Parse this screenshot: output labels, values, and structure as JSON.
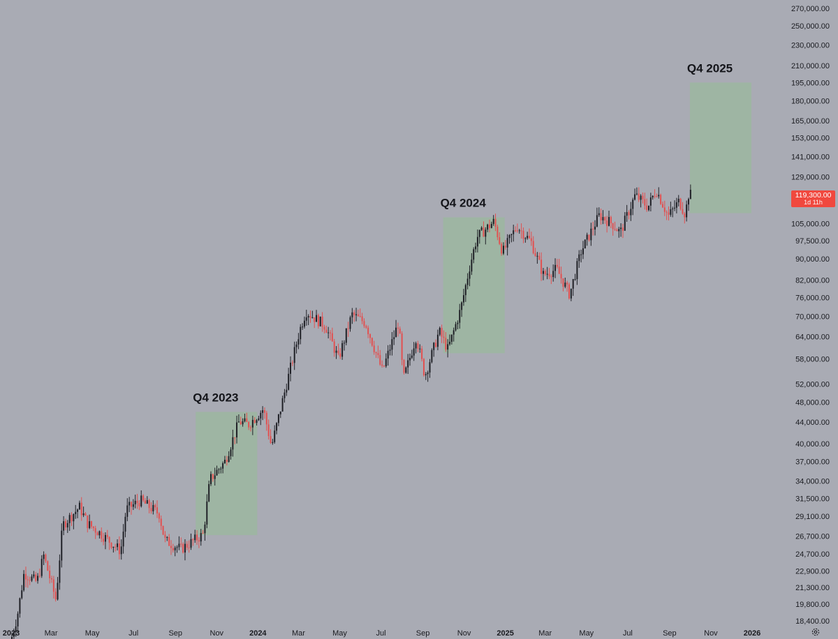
{
  "chart_data": {
    "type": "candlestick",
    "title": "",
    "xlabel": "",
    "ylabel": "",
    "scale": "log",
    "grid": false,
    "y_ticks": [
      "270,000.00",
      "250,000.00",
      "230,000.00",
      "210,000.00",
      "195,000.00",
      "180,000.00",
      "165,000.00",
      "153,000.00",
      "141,000.00",
      "129,000.00",
      "105,000.00",
      "97,500.00",
      "90,000.00",
      "82,000.00",
      "76,000.00",
      "70,000.00",
      "64,000.00",
      "58,000.00",
      "52,000.00",
      "48,000.00",
      "44,000.00",
      "40,000.00",
      "37,000.00",
      "34,000.00",
      "31,500.00",
      "29,100.00",
      "26,700.00",
      "24,700.00",
      "22,900.00",
      "21,300.00",
      "19,800.00",
      "18,400.00"
    ],
    "x_ticks": [
      {
        "label": "2023",
        "date": "2023-01-01",
        "bold": true
      },
      {
        "label": "Mar",
        "date": "2023-03-01",
        "bold": false
      },
      {
        "label": "May",
        "date": "2023-05-01",
        "bold": false
      },
      {
        "label": "Jul",
        "date": "2023-07-01",
        "bold": false
      },
      {
        "label": "Sep",
        "date": "2023-09-01",
        "bold": false
      },
      {
        "label": "Nov",
        "date": "2023-11-01",
        "bold": false
      },
      {
        "label": "2024",
        "date": "2024-01-01",
        "bold": true
      },
      {
        "label": "Mar",
        "date": "2024-03-01",
        "bold": false
      },
      {
        "label": "May",
        "date": "2024-05-01",
        "bold": false
      },
      {
        "label": "Jul",
        "date": "2024-07-01",
        "bold": false
      },
      {
        "label": "Sep",
        "date": "2024-09-01",
        "bold": false
      },
      {
        "label": "Nov",
        "date": "2024-11-01",
        "bold": false
      },
      {
        "label": "2025",
        "date": "2025-01-01",
        "bold": true
      },
      {
        "label": "Mar",
        "date": "2025-03-01",
        "bold": false
      },
      {
        "label": "May",
        "date": "2025-05-01",
        "bold": false
      },
      {
        "label": "Jul",
        "date": "2025-07-01",
        "bold": false
      },
      {
        "label": "Sep",
        "date": "2025-09-01",
        "bold": false
      },
      {
        "label": "Nov",
        "date": "2025-11-01",
        "bold": false
      },
      {
        "label": "2026",
        "date": "2026-01-01",
        "bold": true
      }
    ],
    "price_path": [
      [
        "2023-01-01",
        16600
      ],
      [
        "2023-01-12",
        18800
      ],
      [
        "2023-01-22",
        22700
      ],
      [
        "2023-02-10",
        21800
      ],
      [
        "2023-02-20",
        24500
      ],
      [
        "2023-03-10",
        20200
      ],
      [
        "2023-03-20",
        28000
      ],
      [
        "2023-04-14",
        30300
      ],
      [
        "2023-04-26",
        28200
      ],
      [
        "2023-05-15",
        27000
      ],
      [
        "2023-06-14",
        25000
      ],
      [
        "2023-06-22",
        30000
      ],
      [
        "2023-07-13",
        31200
      ],
      [
        "2023-08-10",
        29400
      ],
      [
        "2023-08-18",
        26200
      ],
      [
        "2023-09-11",
        25200
      ],
      [
        "2023-10-14",
        26900
      ],
      [
        "2023-10-24",
        34200
      ],
      [
        "2023-11-15",
        37000
      ],
      [
        "2023-12-06",
        44100
      ],
      [
        "2023-12-20",
        43500
      ],
      [
        "2024-01-11",
        46600
      ],
      [
        "2024-01-23",
        39500
      ],
      [
        "2024-02-14",
        51800
      ],
      [
        "2024-03-05",
        66000
      ],
      [
        "2024-03-14",
        71500
      ],
      [
        "2024-04-12",
        67000
      ],
      [
        "2024-05-01",
        58000
      ],
      [
        "2024-05-21",
        70500
      ],
      [
        "2024-06-10",
        68000
      ],
      [
        "2024-07-05",
        55000
      ],
      [
        "2024-07-29",
        68200
      ],
      [
        "2024-08-05",
        53000
      ],
      [
        "2024-08-24",
        64000
      ],
      [
        "2024-09-06",
        53900
      ],
      [
        "2024-09-27",
        65500
      ],
      [
        "2024-10-10",
        60500
      ],
      [
        "2024-10-29",
        72300
      ],
      [
        "2024-11-12",
        88000
      ],
      [
        "2024-11-22",
        99000
      ],
      [
        "2024-12-17",
        106000
      ],
      [
        "2024-12-30",
        92600
      ],
      [
        "2025-01-20",
        104000
      ],
      [
        "2025-02-10",
        97000
      ],
      [
        "2025-02-28",
        84000
      ],
      [
        "2025-03-20",
        86000
      ],
      [
        "2025-04-08",
        77000
      ],
      [
        "2025-04-25",
        93000
      ],
      [
        "2025-05-22",
        109000
      ],
      [
        "2025-06-10",
        105000
      ],
      [
        "2025-06-22",
        101000
      ],
      [
        "2025-07-14",
        119000
      ],
      [
        "2025-08-02",
        113000
      ],
      [
        "2025-08-14",
        122000
      ],
      [
        "2025-09-01",
        108500
      ],
      [
        "2025-09-17",
        116000
      ],
      [
        "2025-09-26",
        109500
      ],
      [
        "2025-10-01",
        119300
      ]
    ],
    "current_price": "119,300.00",
    "countdown": "1d 11h",
    "colors": {
      "up": "#1f2026",
      "down": "#e25050",
      "box": "#9bb89e",
      "badge": "#f0483e",
      "background": "#a9abb4"
    },
    "annotations": [
      {
        "label": "Q4 2023",
        "start": "2023-10-01",
        "end": "2023-12-31",
        "low": 26800,
        "high": 46000
      },
      {
        "label": "Q4 2024",
        "start": "2024-10-01",
        "end": "2024-12-31",
        "low": 59500,
        "high": 108000
      },
      {
        "label": "Q4 2025",
        "start": "2025-10-01",
        "end": "2025-12-31",
        "low": 110000,
        "high": 195000
      }
    ]
  },
  "settings_icon": "gear-icon"
}
